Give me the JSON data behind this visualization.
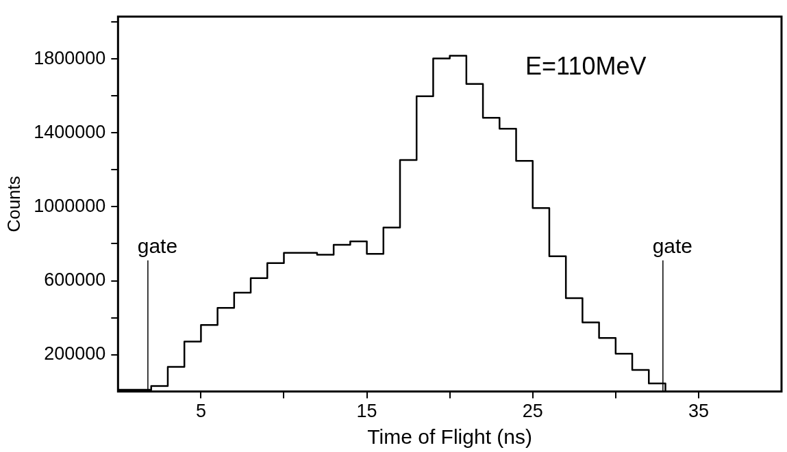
{
  "chart_data": {
    "type": "histogram",
    "xlabel": "Time of Flight (ns)",
    "ylabel": "Counts",
    "bins": [
      0,
      1,
      2,
      3,
      4,
      5,
      6,
      7,
      8,
      9,
      10,
      11,
      12,
      13,
      14,
      15,
      16,
      17,
      18,
      19,
      20,
      21,
      22,
      23,
      24,
      25,
      26,
      27,
      28,
      29,
      30,
      31,
      32,
      33
    ],
    "values": [
      10000,
      10000,
      30000,
      134000,
      271000,
      360000,
      453000,
      535000,
      614000,
      695000,
      751000,
      751000,
      741000,
      794000,
      813000,
      745000,
      888000,
      1253000,
      1599000,
      1803000,
      1818000,
      1665000,
      1482000,
      1423000,
      1249000,
      993000,
      732000,
      506000,
      374000,
      290000,
      205000,
      117000,
      44000
    ],
    "color": "#000000",
    "xlim": [
      0,
      40
    ],
    "xticks": [
      5,
      {
        "value": 10,
        "label": null
      },
      15,
      {
        "value": 20,
        "label": null
      },
      25,
      {
        "value": 30,
        "label": null
      },
      35
    ],
    "ylim": [
      0,
      2030000
    ],
    "yticks": [
      200000,
      {
        "value": 400000,
        "label": null
      },
      600000,
      {
        "value": 800000,
        "label": null
      },
      1000000,
      {
        "value": 1200000,
        "label": null
      },
      1400000,
      {
        "value": 1600000,
        "label": null
      },
      1800000,
      {
        "value": 2000000,
        "label": null
      }
    ],
    "ref_lines": [
      {
        "axis": "x",
        "value": 1.8,
        "label": "gate"
      },
      {
        "axis": "x",
        "value": 32.85,
        "label": "gate"
      }
    ],
    "annotations": [
      "E=110MeV"
    ],
    "grid": false,
    "legend": false
  }
}
